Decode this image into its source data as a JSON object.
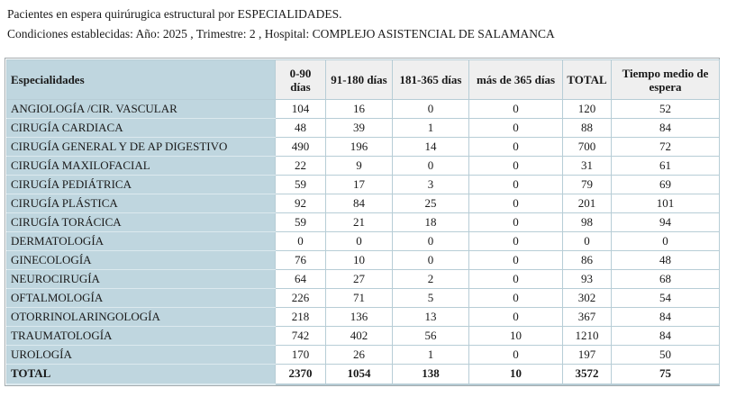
{
  "report": {
    "title": "Pacientes en espera quirúrugica estructural por ESPECIALIDADES.",
    "conditions": "Condiciones establecidas: Año: 2025 , Trimestre: 2 , Hospital: COMPLEJO ASISTENCIAL DE SALAMANCA",
    "year": "2025",
    "quarter": "2",
    "hospital": "COMPLEJO ASISTENCIAL DE SALAMANCA"
  },
  "table": {
    "columns": [
      "Especialidades",
      "0-90 días",
      "91-180 días",
      "181-365 días",
      "más de 365 días",
      "TOTAL",
      "Tiempo medio de espera"
    ],
    "rows": [
      {
        "especialidad": "ANGIOLOGÍA /CIR. VASCULAR",
        "values": [
          104,
          16,
          0,
          0,
          120,
          52
        ]
      },
      {
        "especialidad": "CIRUGÍA CARDIACA",
        "values": [
          48,
          39,
          1,
          0,
          88,
          84
        ]
      },
      {
        "especialidad": "CIRUGÍA GENERAL Y DE AP DIGESTIVO",
        "values": [
          490,
          196,
          14,
          0,
          700,
          72
        ]
      },
      {
        "especialidad": "CIRUGÍA MAXILOFACIAL",
        "values": [
          22,
          9,
          0,
          0,
          31,
          61
        ]
      },
      {
        "especialidad": "CIRUGÍA PEDIÁTRICA",
        "values": [
          59,
          17,
          3,
          0,
          79,
          69
        ]
      },
      {
        "especialidad": "CIRUGÍA PLÁSTICA",
        "values": [
          92,
          84,
          25,
          0,
          201,
          101
        ]
      },
      {
        "especialidad": "CIRUGÍA TORÁCICA",
        "values": [
          59,
          21,
          18,
          0,
          98,
          94
        ]
      },
      {
        "especialidad": "DERMATOLOGÍA",
        "values": [
          0,
          0,
          0,
          0,
          0,
          0
        ]
      },
      {
        "especialidad": "GINECOLOGÍA",
        "values": [
          76,
          10,
          0,
          0,
          86,
          48
        ]
      },
      {
        "especialidad": "NEUROCIRUGÍA",
        "values": [
          64,
          27,
          2,
          0,
          93,
          68
        ]
      },
      {
        "especialidad": "OFTALMOLOGÍA",
        "values": [
          226,
          71,
          5,
          0,
          302,
          54
        ]
      },
      {
        "especialidad": "OTORRINOLARINGOLOGÍA",
        "values": [
          218,
          136,
          13,
          0,
          367,
          84
        ]
      },
      {
        "especialidad": "TRAUMATOLOGÍA",
        "values": [
          742,
          402,
          56,
          10,
          1210,
          84
        ]
      },
      {
        "especialidad": "UROLOGÍA",
        "values": [
          170,
          26,
          1,
          0,
          197,
          50
        ]
      }
    ],
    "total": {
      "especialidad": "TOTAL",
      "values": [
        2370,
        1054,
        138,
        10,
        3572,
        75
      ]
    }
  },
  "colors": {
    "cell_blue": "#bfd6df",
    "head_gray": "#efefef",
    "border_inner": "#b7cdd6",
    "border_outer": "#a3abae"
  }
}
